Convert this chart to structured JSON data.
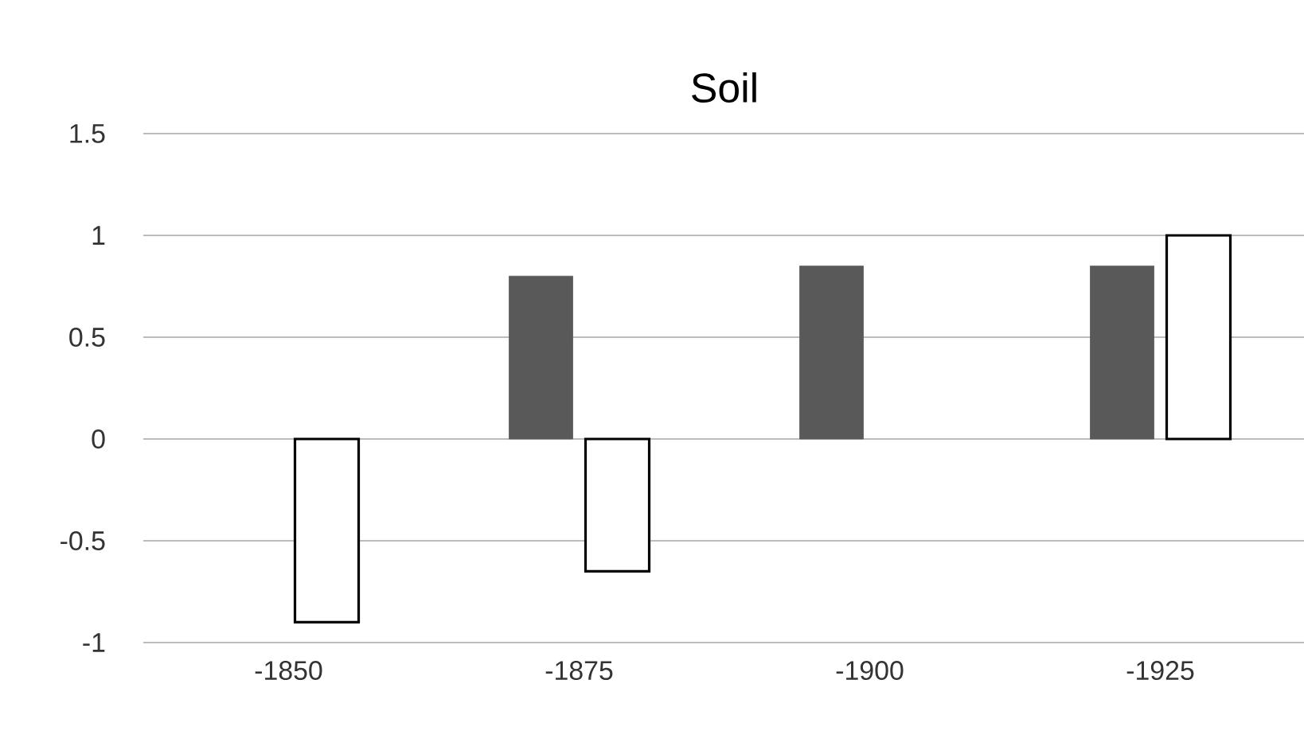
{
  "chart_data": {
    "type": "bar",
    "title": "Soil",
    "categories": [
      "-1850",
      "-1875",
      "-1900",
      "-1925"
    ],
    "series": [
      {
        "color": "#595959",
        "values": [
          null,
          0.8,
          0.85,
          0.85
        ]
      },
      {
        "color": "#000000",
        "values": [
          -0.9,
          -0.65,
          null,
          1.0
        ]
      }
    ],
    "ylim": [
      -1,
      1.5
    ],
    "yticks": [
      -1,
      -0.5,
      0,
      0.5,
      1,
      1.5
    ],
    "grid": "y"
  }
}
